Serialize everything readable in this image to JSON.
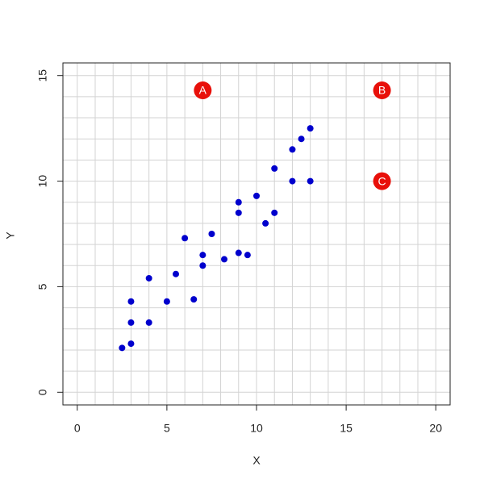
{
  "chart_data": {
    "type": "scatter",
    "xlabel": "X",
    "ylabel": "Y",
    "xlim": [
      -0.8,
      20.8
    ],
    "ylim": [
      -0.6,
      15.6
    ],
    "xticks": [
      0,
      5,
      10,
      15,
      20
    ],
    "yticks": [
      0,
      5,
      10,
      15
    ],
    "grid": true,
    "xgrid": [
      0,
      1,
      2,
      3,
      4,
      5,
      6,
      7,
      8,
      9,
      10,
      11,
      12,
      13,
      14,
      15,
      16,
      17,
      18,
      19,
      20
    ],
    "ygrid": [
      0,
      1,
      2,
      3,
      4,
      5,
      6,
      7,
      8,
      9,
      10,
      11,
      12,
      13,
      14,
      15
    ],
    "series": [
      {
        "color": "#0000cd",
        "x": [
          2.5,
          3,
          3,
          3,
          4,
          4,
          5,
          5.5,
          6,
          6.5,
          7,
          7,
          7.5,
          8.2,
          9,
          9,
          9,
          9.5,
          10,
          10.5,
          11,
          11,
          12,
          12,
          12.5,
          13,
          13
        ],
        "values": [
          2.1,
          2.3,
          3.3,
          4.3,
          3.3,
          5.4,
          4.3,
          5.6,
          7.3,
          4.4,
          6.0,
          6.5,
          7.5,
          6.3,
          6.6,
          8.5,
          9.0,
          6.5,
          9.3,
          8.0,
          8.5,
          10.6,
          10.0,
          11.5,
          12.0,
          10.0,
          12.5
        ]
      },
      {
        "color": "#e8100a",
        "x": [
          7,
          17,
          17
        ],
        "values": [
          14.3,
          14.3,
          10
        ],
        "labels": [
          "A",
          "B",
          "C"
        ]
      }
    ]
  }
}
